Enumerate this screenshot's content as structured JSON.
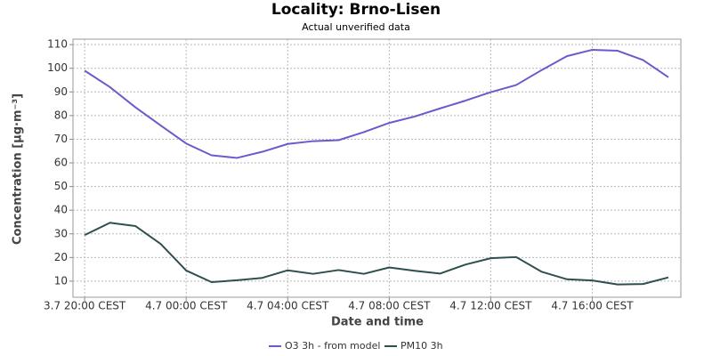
{
  "chart_data": {
    "type": "line",
    "title": "Locality: Brno-Lisen",
    "subtitle": "Actual unverified data",
    "x_label": "Date and time",
    "y_label": "Concentration [µg·m⁻³]",
    "categories": [
      "3.7 20:00 CEST",
      null,
      null,
      null,
      "4.7 00:00 CEST",
      null,
      null,
      null,
      "4.7 04:00 CEST",
      null,
      null,
      null,
      "4.7 08:00 CEST",
      null,
      null,
      null,
      "4.7 12:00 CEST",
      null,
      null,
      null,
      "4.7 16:00 CEST",
      null,
      null,
      null
    ],
    "series": [
      {
        "name": "O3 3h - from model",
        "color": "#6a5acd",
        "values": [
          99,
          92,
          83.5,
          75.8,
          68.2,
          63.2,
          62.1,
          64.7,
          68,
          69.2,
          69.6,
          73,
          76.9,
          79.6,
          83,
          86.3,
          89.9,
          92.9,
          99.2,
          105.1,
          107.8,
          107.4,
          103.5,
          96.2
        ]
      },
      {
        "name": "PM10 3h",
        "color": "#2f4f4f",
        "values": [
          29.5,
          34.7,
          33.3,
          25.7,
          14.5,
          9.6,
          10.4,
          11.4,
          14.6,
          13.1,
          14.7,
          13.1,
          15.8,
          14.4,
          13.2,
          17,
          19.7,
          20.2,
          14,
          10.8,
          10.3,
          8.6,
          8.8,
          11.6
        ]
      }
    ],
    "ylim": [
      3.2,
      112.3
    ],
    "yticks": [
      10,
      20,
      30,
      40,
      50,
      60,
      70,
      80,
      90,
      100,
      110
    ],
    "grid": true,
    "legend": "bottom"
  }
}
